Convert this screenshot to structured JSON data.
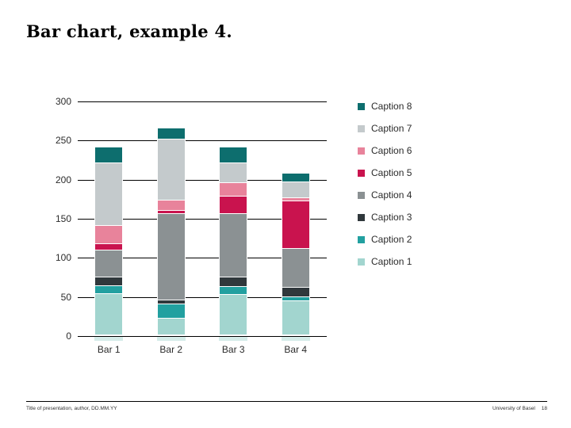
{
  "slide": {
    "title": "Bar chart, example 4.",
    "footer": {
      "left": "Title of presentation, author, DD.MM.YY",
      "right": "University of Basel",
      "page_number": "18"
    }
  },
  "chart_data": {
    "type": "bar",
    "stacked": true,
    "title": "",
    "xlabel": "",
    "ylabel": "",
    "categories": [
      "Bar 1",
      "Bar 2",
      "Bar 3",
      "Bar 4"
    ],
    "series": [
      {
        "name": "Caption 1",
        "color": "#a2d5cf",
        "values": [
          53,
          21,
          52,
          44
        ]
      },
      {
        "name": "Caption 2",
        "color": "#22a0a0",
        "values": [
          10,
          19,
          10,
          5
        ]
      },
      {
        "name": "Caption 3",
        "color": "#30383c",
        "values": [
          11,
          5,
          12,
          12
        ]
      },
      {
        "name": "Caption 4",
        "color": "#8b9193",
        "values": [
          34,
          110,
          81,
          50
        ]
      },
      {
        "name": "Caption 5",
        "color": "#c9134e",
        "values": [
          9,
          4,
          22,
          60
        ]
      },
      {
        "name": "Caption 6",
        "color": "#e8839b",
        "values": [
          23,
          13,
          18,
          4
        ]
      },
      {
        "name": "Caption 7",
        "color": "#c4cacc",
        "values": [
          80,
          78,
          25,
          21
        ]
      },
      {
        "name": "Caption 8",
        "color": "#0d6e6e",
        "values": [
          20,
          15,
          20,
          11
        ]
      }
    ],
    "bar_totals": [
      240,
      265,
      240,
      207
    ],
    "ylim": [
      0,
      300
    ],
    "yticks": [
      0,
      50,
      100,
      150,
      200,
      250,
      300
    ],
    "grid": true,
    "gridline_color": "#000000",
    "legend_position": "right",
    "legend_order_top_to_bottom": [
      "Caption 8",
      "Caption 7",
      "Caption 6",
      "Caption 5",
      "Caption 4",
      "Caption 3",
      "Caption 2",
      "Caption 1"
    ]
  }
}
